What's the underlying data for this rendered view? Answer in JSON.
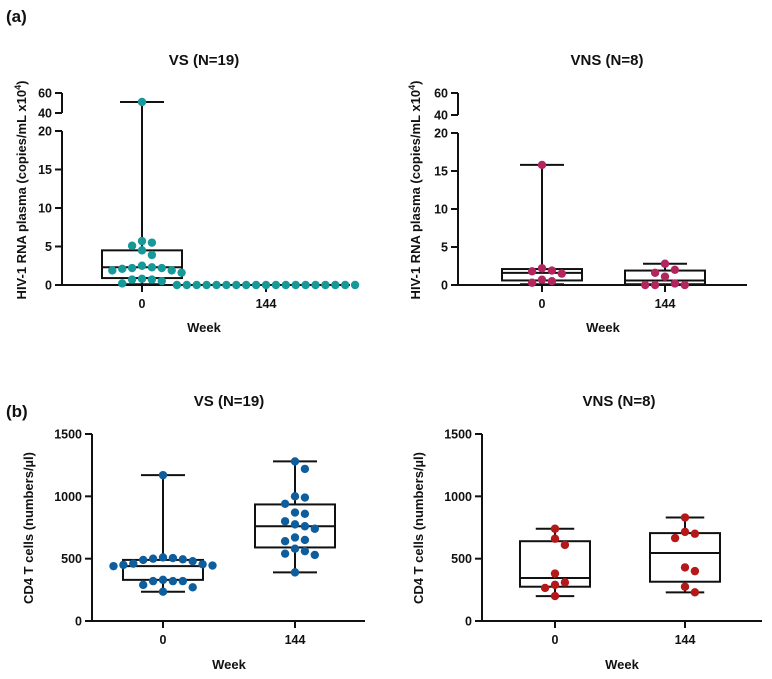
{
  "panel_labels": {
    "a": "(a)",
    "b": "(b)"
  },
  "chart_data": [
    {
      "type": "box",
      "title": "VS (N=19)",
      "xlabel": "Week",
      "ylabel": "HIV-1 RNA plasma (copies/mL x10",
      "ylabel_sup": "4",
      "ylabel_end": ")",
      "y_segments": [
        [
          0,
          20
        ],
        [
          40,
          60
        ]
      ],
      "yticks": [
        0,
        5,
        10,
        15,
        20,
        40,
        60
      ],
      "categories": [
        "0",
        "144"
      ],
      "color": "#17999a",
      "grid": false,
      "groups": [
        {
          "min": 0.1,
          "q1": 0.9,
          "median": 2.3,
          "q3": 4.5,
          "max": 51,
          "points": [
            51,
            5.7,
            5.5,
            5.1,
            4.5,
            3.9,
            2.5,
            2.3,
            2.2,
            2.2,
            2.1,
            1.9,
            1.9,
            1.6,
            0.8,
            0.7,
            0.7,
            0.5,
            0.2
          ]
        },
        {
          "min": 0,
          "q1": 0,
          "median": 0,
          "q3": 0,
          "max": 0,
          "points": [
            0,
            0,
            0,
            0,
            0,
            0,
            0,
            0,
            0,
            0,
            0,
            0,
            0,
            0,
            0,
            0,
            0,
            0,
            0
          ]
        }
      ]
    },
    {
      "type": "box",
      "title": "VNS (N=8)",
      "xlabel": "Week",
      "ylabel": "HIV-1 RNA plasma (copies/mL x10",
      "ylabel_sup": "4",
      "ylabel_end": ")",
      "y_segments": [
        [
          0,
          20
        ],
        [
          40,
          60
        ]
      ],
      "yticks": [
        0,
        5,
        10,
        15,
        20,
        40,
        60
      ],
      "categories": [
        "0",
        "144"
      ],
      "color": "#b3255f",
      "grid": false,
      "groups": [
        {
          "min": 0.1,
          "q1": 0.6,
          "median": 1.6,
          "q3": 2.1,
          "max": 15.8,
          "points": [
            15.8,
            2.2,
            1.9,
            1.8,
            1.5,
            0.7,
            0.5,
            0.3
          ]
        },
        {
          "min": 0,
          "q1": 0.1,
          "median": 0.6,
          "q3": 1.9,
          "max": 2.8,
          "points": [
            2.8,
            2.0,
            1.6,
            1.1,
            0.2,
            0,
            0,
            0
          ]
        }
      ]
    },
    {
      "type": "box",
      "title": "VS (N=19)",
      "xlabel": "Week",
      "ylabel": "CD4 T cells (numbers/µl)",
      "y_segments": [
        [
          0,
          1500
        ]
      ],
      "yticks": [
        0,
        500,
        1000,
        1500
      ],
      "categories": [
        "0",
        "144"
      ],
      "color": "#0e5e9e",
      "grid": false,
      "groups": [
        {
          "min": 235,
          "q1": 330,
          "median": 440,
          "q3": 490,
          "max": 1170,
          "points": [
            1170,
            510,
            505,
            500,
            495,
            490,
            480,
            460,
            455,
            450,
            445,
            440,
            330,
            320,
            320,
            320,
            290,
            270,
            235
          ]
        },
        {
          "min": 390,
          "q1": 590,
          "median": 760,
          "q3": 935,
          "max": 1280,
          "points": [
            1280,
            1220,
            1000,
            990,
            940,
            870,
            860,
            800,
            775,
            760,
            740,
            670,
            650,
            640,
            580,
            560,
            540,
            530,
            390
          ]
        }
      ]
    },
    {
      "type": "box",
      "title": "VNS (N=8)",
      "xlabel": "Week",
      "ylabel": "CD4 T cells (numbers/µl)",
      "y_segments": [
        [
          0,
          1500
        ]
      ],
      "yticks": [
        0,
        500,
        1000,
        1500
      ],
      "categories": [
        "0",
        "144"
      ],
      "color": "#b51818",
      "grid": false,
      "groups": [
        {
          "min": 200,
          "q1": 275,
          "median": 345,
          "q3": 640,
          "max": 740,
          "points": [
            740,
            660,
            610,
            380,
            310,
            290,
            265,
            200
          ]
        },
        {
          "min": 230,
          "q1": 315,
          "median": 545,
          "q3": 705,
          "max": 830,
          "points": [
            830,
            715,
            700,
            665,
            430,
            400,
            275,
            230
          ]
        }
      ]
    }
  ]
}
